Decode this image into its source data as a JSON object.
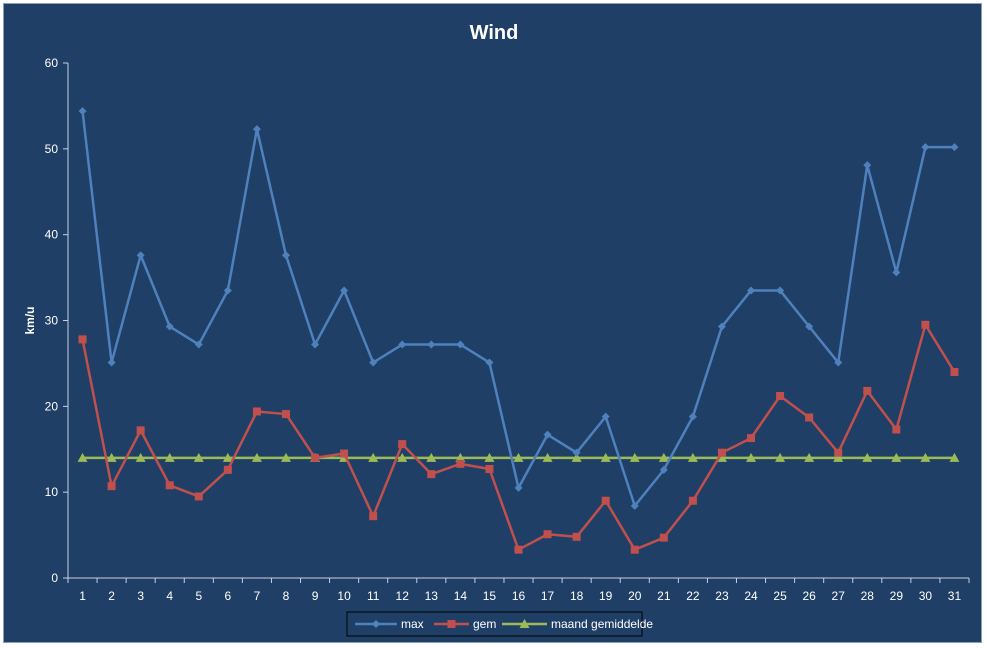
{
  "chart_data": {
    "type": "line",
    "title": "Wind",
    "xlabel": "",
    "ylabel": "km/u",
    "ylim": [
      0,
      60
    ],
    "yticks": [
      0,
      10,
      20,
      30,
      40,
      50,
      60
    ],
    "grid": false,
    "legend_position": "bottom",
    "categories": [
      "1",
      "2",
      "3",
      "4",
      "5",
      "6",
      "7",
      "8",
      "9",
      "10",
      "11",
      "12",
      "13",
      "14",
      "15",
      "16",
      "17",
      "18",
      "19",
      "20",
      "21",
      "22",
      "23",
      "24",
      "25",
      "26",
      "27",
      "28",
      "29",
      "30",
      "31"
    ],
    "series": [
      {
        "name": "max",
        "color": "#4f81bd",
        "marker": "diamond",
        "values": [
          54.4,
          25.1,
          37.6,
          29.3,
          27.2,
          33.5,
          52.3,
          37.6,
          27.2,
          33.5,
          25.1,
          27.2,
          27.2,
          27.2,
          25.1,
          10.5,
          16.7,
          14.6,
          18.8,
          8.4,
          12.6,
          18.8,
          29.3,
          33.5,
          33.5,
          29.3,
          25.1,
          48.1,
          35.6,
          50.2,
          50.2
        ]
      },
      {
        "name": "gem",
        "color": "#c0504d",
        "marker": "square",
        "values": [
          27.8,
          10.7,
          17.2,
          10.8,
          9.5,
          12.6,
          19.4,
          19.1,
          14.0,
          14.5,
          7.2,
          15.6,
          12.1,
          13.3,
          12.7,
          3.3,
          5.1,
          4.8,
          9.0,
          3.3,
          4.7,
          9.0,
          14.6,
          16.3,
          21.2,
          18.7,
          14.6,
          21.8,
          17.3,
          29.5,
          24.0
        ]
      },
      {
        "name": "maand gemiddelde",
        "color": "#9bbb59",
        "marker": "triangle",
        "values": [
          14.0,
          14.0,
          14.0,
          14.0,
          14.0,
          14.0,
          14.0,
          14.0,
          14.0,
          14.0,
          14.0,
          14.0,
          14.0,
          14.0,
          14.0,
          14.0,
          14.0,
          14.0,
          14.0,
          14.0,
          14.0,
          14.0,
          14.0,
          14.0,
          14.0,
          14.0,
          14.0,
          14.0,
          14.0,
          14.0,
          14.0
        ]
      }
    ]
  }
}
